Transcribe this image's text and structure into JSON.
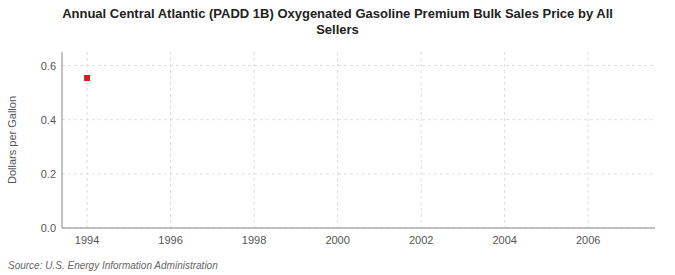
{
  "chart_data": {
    "type": "scatter",
    "title": "Annual Central Atlantic (PADD 1B) Oxygenated Gasoline Premium Bulk Sales Price by All\nSellers",
    "ylabel": "Dollars per Gallon",
    "source": "Source: U.S. Energy Information Administration",
    "x": [
      1994
    ],
    "values": [
      0.554
    ],
    "color": "#cc2222",
    "marker": "square",
    "xlim": [
      1993.4,
      2007.6
    ],
    "ylim": [
      0,
      0.65
    ],
    "xticks": [
      1994,
      1996,
      1998,
      2000,
      2002,
      2004,
      2006
    ],
    "yticks": [
      {
        "value": 0,
        "label": "0.0"
      },
      0.2,
      0.4,
      0.6
    ],
    "grid": true
  }
}
